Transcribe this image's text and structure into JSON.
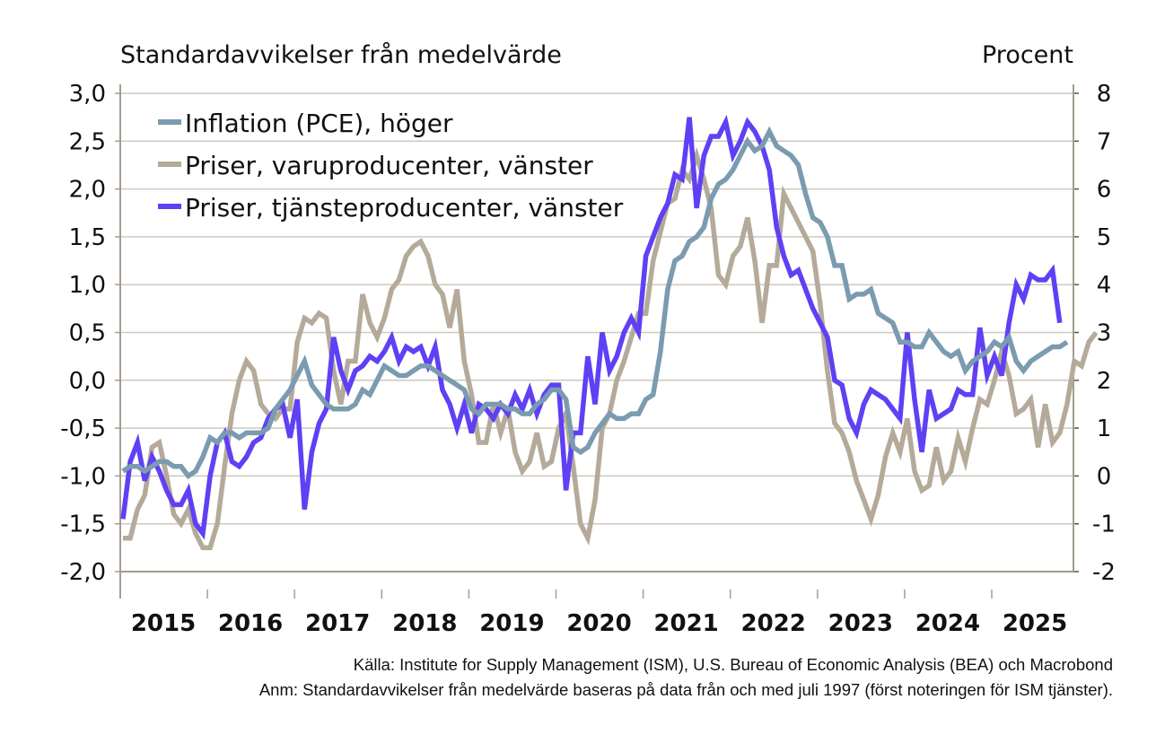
{
  "chart_data": {
    "type": "line",
    "left_axis_title": "Standardavvikelser från medelvärde",
    "right_axis_title": "Procent",
    "left_ylim": [
      -2.0,
      3.0
    ],
    "right_ylim": [
      -2,
      8
    ],
    "left_ticks": [
      "3,0",
      "2,5",
      "2,0",
      "1,5",
      "1,0",
      "0,5",
      "0,0",
      "-0,5",
      "-1,0",
      "-1,5",
      "-2,0"
    ],
    "left_tick_values": [
      3.0,
      2.5,
      2.0,
      1.5,
      1.0,
      0.5,
      0.0,
      -0.5,
      -1.0,
      -1.5,
      -2.0
    ],
    "right_ticks": [
      "8",
      "7",
      "6",
      "5",
      "4",
      "3",
      "2",
      "1",
      "0",
      "-1",
      "-2"
    ],
    "right_tick_values": [
      8,
      7,
      6,
      5,
      4,
      3,
      2,
      1,
      0,
      -1,
      -2
    ],
    "x_start": "2015-01",
    "x_categories": [
      "2015",
      "2016",
      "2017",
      "2018",
      "2019",
      "2020",
      "2021",
      "2022",
      "2023",
      "2024",
      "2025"
    ],
    "grid": true,
    "legend_position": "top-left",
    "series": [
      {
        "name": "Inflation (PCE), höger",
        "axis": "right",
        "color": "#7a9bb0",
        "values": [
          0.1,
          0.2,
          0.2,
          0.1,
          0.2,
          0.3,
          0.3,
          0.2,
          0.2,
          0.0,
          0.1,
          0.4,
          0.8,
          0.7,
          0.9,
          0.9,
          0.8,
          0.9,
          0.9,
          0.9,
          1.0,
          1.4,
          1.6,
          1.8,
          2.1,
          2.4,
          1.9,
          1.7,
          1.5,
          1.4,
          1.4,
          1.4,
          1.5,
          1.8,
          1.7,
          2.0,
          2.3,
          2.2,
          2.1,
          2.1,
          2.2,
          2.3,
          2.3,
          2.2,
          2.1,
          2.0,
          1.9,
          1.8,
          1.4,
          1.3,
          1.5,
          1.5,
          1.5,
          1.4,
          1.4,
          1.3,
          1.3,
          1.5,
          1.6,
          1.8,
          1.8,
          1.6,
          0.6,
          0.5,
          0.6,
          0.9,
          1.1,
          1.3,
          1.2,
          1.2,
          1.3,
          1.3,
          1.6,
          1.7,
          2.6,
          3.9,
          4.5,
          4.6,
          4.9,
          5.0,
          5.2,
          5.8,
          6.1,
          6.2,
          6.4,
          6.7,
          7.0,
          6.8,
          6.9,
          7.2,
          6.9,
          6.8,
          6.7,
          6.5,
          5.9,
          5.4,
          5.3,
          5.0,
          4.4,
          4.4,
          3.7,
          3.8,
          3.8,
          3.9,
          3.4,
          3.3,
          3.2,
          2.8,
          2.8,
          2.7,
          2.7,
          3.0,
          2.8,
          2.6,
          2.5,
          2.6,
          2.2,
          2.4,
          2.5,
          2.6,
          2.8,
          2.7,
          2.9,
          2.4,
          2.2,
          2.4,
          2.5,
          2.6,
          2.7,
          2.7,
          2.8
        ],
        "values_month_offset": 0
      },
      {
        "name": "Priser, varuproducenter, vänster",
        "axis": "left",
        "color": "#b5aa9a",
        "values": [
          -1.65,
          -1.65,
          -1.35,
          -1.2,
          -0.7,
          -0.65,
          -1.0,
          -1.4,
          -1.5,
          -1.35,
          -1.6,
          -1.75,
          -1.75,
          -1.5,
          -0.9,
          -0.35,
          0.0,
          0.2,
          0.1,
          -0.25,
          -0.35,
          -0.4,
          -0.3,
          -0.3,
          0.4,
          0.65,
          0.6,
          0.7,
          0.65,
          0.1,
          -0.25,
          0.2,
          0.2,
          0.9,
          0.6,
          0.45,
          0.65,
          0.95,
          1.05,
          1.3,
          1.4,
          1.45,
          1.3,
          1.0,
          0.9,
          0.55,
          0.95,
          0.2,
          -0.15,
          -0.65,
          -0.65,
          -0.25,
          -0.55,
          -0.3,
          -0.75,
          -0.95,
          -0.85,
          -0.55,
          -0.9,
          -0.85,
          -0.5,
          -0.35,
          -0.9,
          -1.5,
          -1.65,
          -1.25,
          -0.5,
          -0.35,
          0.0,
          0.2,
          0.45,
          0.7,
          0.7,
          1.25,
          1.55,
          1.85,
          1.9,
          2.2,
          2.1,
          2.35,
          2.1,
          1.8,
          1.1,
          1.0,
          1.3,
          1.4,
          1.7,
          1.25,
          0.6,
          1.2,
          1.2,
          1.95,
          1.8,
          1.65,
          1.5,
          1.35,
          0.8,
          0.1,
          -0.45,
          -0.55,
          -0.75,
          -1.05,
          -1.25,
          -1.45,
          -1.2,
          -0.8,
          -0.55,
          -0.75,
          -0.4,
          -0.95,
          -1.15,
          -1.1,
          -0.7,
          -1.05,
          -0.95,
          -0.6,
          -0.85,
          -0.5,
          -0.2,
          -0.25,
          0.0,
          0.3,
          0.05,
          -0.35,
          -0.3,
          -0.2,
          -0.7,
          -0.25,
          -0.65,
          -0.55,
          -0.25,
          0.2,
          0.15,
          0.4,
          0.5
        ]
      },
      {
        "name": "Priser, tjänsteproducenter, vänster",
        "axis": "left",
        "color": "#6040f5",
        "values": [
          -1.45,
          -0.85,
          -0.65,
          -1.05,
          -0.8,
          -0.95,
          -1.15,
          -1.3,
          -1.3,
          -1.15,
          -1.5,
          -1.6,
          -1.0,
          -0.65,
          -0.55,
          -0.85,
          -0.9,
          -0.8,
          -0.65,
          -0.6,
          -0.4,
          -0.3,
          -0.25,
          -0.6,
          -0.2,
          -1.35,
          -0.75,
          -0.45,
          -0.3,
          0.45,
          0.1,
          -0.1,
          0.1,
          0.15,
          0.25,
          0.2,
          0.3,
          0.45,
          0.2,
          0.35,
          0.3,
          0.35,
          0.15,
          0.35,
          -0.1,
          -0.25,
          -0.5,
          -0.25,
          -0.55,
          -0.25,
          -0.3,
          -0.4,
          -0.25,
          -0.35,
          -0.15,
          -0.3,
          -0.1,
          -0.35,
          -0.15,
          -0.05,
          -0.05,
          -1.15,
          -0.55,
          -0.55,
          0.25,
          -0.25,
          0.5,
          0.1,
          0.25,
          0.5,
          0.65,
          0.5,
          1.3,
          1.5,
          1.7,
          1.85,
          2.15,
          2.1,
          2.75,
          1.8,
          2.35,
          2.55,
          2.55,
          2.7,
          2.35,
          2.5,
          2.7,
          2.6,
          2.45,
          2.2,
          1.6,
          1.3,
          1.1,
          1.15,
          0.95,
          0.75,
          0.6,
          0.45,
          0.0,
          -0.05,
          -0.4,
          -0.55,
          -0.25,
          -0.1,
          -0.15,
          -0.2,
          -0.3,
          -0.4,
          0.5,
          -0.2,
          -0.75,
          -0.1,
          -0.4,
          -0.35,
          -0.3,
          -0.1,
          -0.15,
          -0.15,
          0.55,
          0.05,
          0.25,
          0.05,
          0.6,
          1.0,
          0.85,
          1.1,
          1.05,
          1.05,
          1.15,
          0.6
        ]
      }
    ]
  },
  "notes": {
    "source": "Källa: Institute for Supply Management (ISM), U.S. Bureau of Economic Analysis (BEA)  och Macrobond",
    "remark": "Anm: Standardavvikelser från medelvärde baseras på data från och med juli 1997 (först noteringen för ISM tjänster)."
  }
}
